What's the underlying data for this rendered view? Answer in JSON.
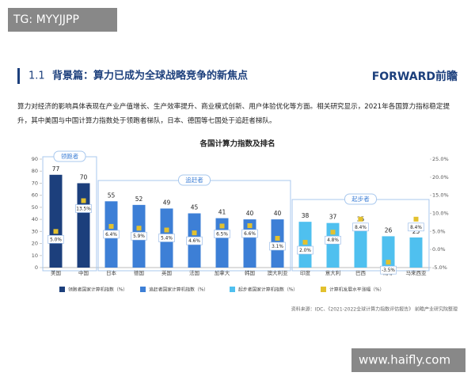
{
  "watermark_top": "TG: MYYJJPP",
  "header": {
    "number": "1.1",
    "title": "背景篇：算力已成为全球战略竞争的新焦点",
    "logo": "FORWARD前瞻"
  },
  "paragraph": "算力对经济的影响具体表现在产业产值增长、生产效率提升、商业模式创新、用户体验优化等方面。相关研究显示，2021年各国算力指标稳定提升，其中美国与中国计算力指数处于领跑者梯队，日本、德国等七国处于追赶者梯队。",
  "chart_data": {
    "type": "bar",
    "title": "各国计算力指数及排名",
    "categories": [
      "美国",
      "中国",
      "日本",
      "德国",
      "英国",
      "法国",
      "加拿大",
      "韩国",
      "澳大利亚",
      "印度",
      "意大利",
      "巴西",
      "南非",
      "马来西亚"
    ],
    "annotations": [
      "领跑者",
      "追赶者",
      "起步者"
    ],
    "series": [
      {
        "name": "领跑者国家计算机指数（%）",
        "color": "#1c3f7c",
        "values": [
          77,
          70,
          null,
          null,
          null,
          null,
          null,
          null,
          null,
          null,
          null,
          null,
          null,
          null
        ]
      },
      {
        "name": "追赶者国家计算机指数（%）",
        "color": "#3d7fd6",
        "values": [
          null,
          null,
          55,
          52,
          49,
          45,
          41,
          40,
          40,
          null,
          null,
          null,
          null,
          null
        ]
      },
      {
        "name": "起步者国家计算机指数（%）",
        "color": "#4fc0ef",
        "values": [
          null,
          null,
          null,
          null,
          null,
          null,
          null,
          null,
          null,
          38,
          37,
          35,
          26,
          25
        ]
      },
      {
        "name": "计算机发展水平涨幅（%）",
        "color": "#e3c12e",
        "axis": "y2",
        "values": [
          5.0,
          13.5,
          6.4,
          5.9,
          5.4,
          4.6,
          6.5,
          6.6,
          3.1,
          2.0,
          4.8,
          8.4,
          -3.5,
          8.4
        ],
        "value_labels": [
          "5.0%",
          "13.5%",
          "6.4%",
          "5.9%",
          "5.4%",
          "4.6%",
          "6.5%",
          "6.6%",
          "3.1%",
          "2.0%",
          "4.8%",
          "8.4%",
          "-3.5%",
          "8.4%"
        ]
      }
    ],
    "ylim": [
      0,
      90
    ],
    "yticks": [
      0,
      10,
      20,
      30,
      40,
      50,
      60,
      70,
      80,
      90
    ],
    "y2lim": [
      -5,
      25
    ],
    "y2ticks": [
      {
        "value": -5,
        "label": "-5.0%"
      },
      {
        "value": 0,
        "label": "0.0%"
      },
      {
        "value": 5,
        "label": "5.0%"
      },
      {
        "value": 10,
        "label": "10.0%"
      },
      {
        "value": 15,
        "label": "15.0%"
      },
      {
        "value": 20,
        "label": "20.0%"
      },
      {
        "value": 25,
        "label": "25.0%"
      }
    ],
    "source": "资料来源：IDC、《2021-2022全球计算力指数评估报告》 前瞻产业研究院整理"
  },
  "watermark_bottom": "www.haifly.com"
}
